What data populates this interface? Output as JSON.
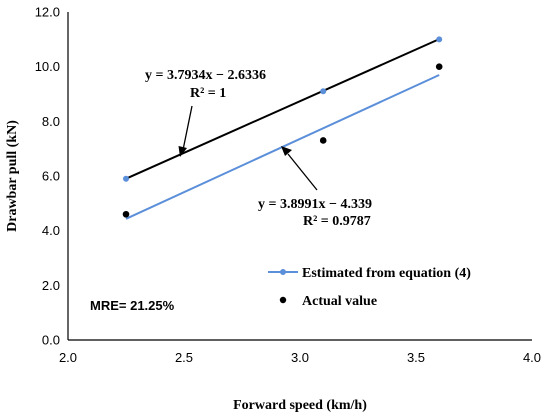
{
  "chart_data": {
    "type": "scatter",
    "xlabel": "Forward speed (km/h)",
    "ylabel": "Drawbar pull (kN)",
    "xlim": [
      2.0,
      4.0
    ],
    "ylim": [
      0.0,
      12.0
    ],
    "x_ticks": [
      "2.0",
      "2.5",
      "3.0",
      "3.5",
      "4.0"
    ],
    "y_ticks": [
      "0.0",
      "2.0",
      "4.0",
      "6.0",
      "8.0",
      "10.0",
      "12.0"
    ],
    "grid": false,
    "legend_position": "lower-right",
    "series": [
      {
        "name": "Estimated from equation (4)",
        "style": "line-with-markers",
        "color": "#5b8fd9",
        "x": [
          2.25,
          3.1,
          3.6
        ],
        "y": [
          5.9,
          9.1,
          11.0
        ]
      },
      {
        "name": "Actual value",
        "style": "markers",
        "color": "#000000",
        "x": [
          2.25,
          3.1,
          3.6
        ],
        "y": [
          4.6,
          7.3,
          10.0
        ]
      }
    ],
    "trendlines": [
      {
        "color": "#000000",
        "x": [
          2.25,
          3.6
        ],
        "y": [
          5.9012,
          11.0073
        ]
      },
      {
        "color": "#5b8fd9",
        "x": [
          2.25,
          3.6
        ],
        "y": [
          4.434,
          9.6958
        ]
      }
    ],
    "annotations": {
      "eq_black_line1": "y = 3.7934x − 2.6336",
      "eq_black_line2": "R² = 1",
      "eq_blue_line1": "y = 3.8991x − 4.339",
      "eq_blue_line2": "R² = 0.9787",
      "mre": "MRE= 21.25%"
    }
  }
}
